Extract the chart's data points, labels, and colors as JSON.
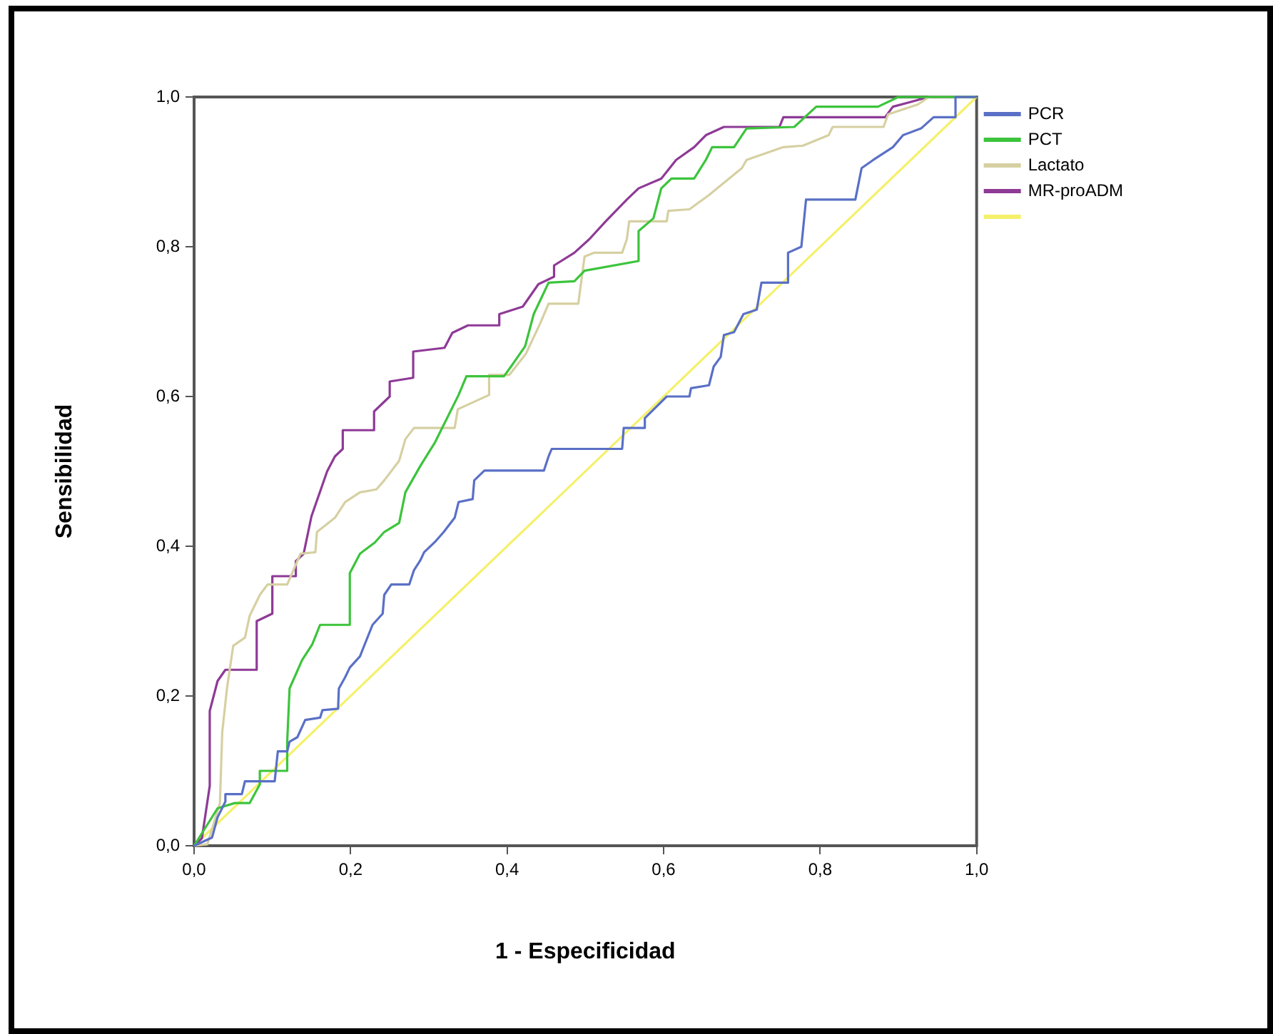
{
  "chart_data": {
    "type": "line",
    "xlabel": "1 - Especificidad",
    "ylabel": "Sensibilidad",
    "xlim": [
      0,
      1
    ],
    "ylim": [
      0,
      1
    ],
    "xticks": [
      {
        "value": 0,
        "label": "0,0"
      },
      {
        "value": 0.2,
        "label": "0,2"
      },
      {
        "value": 0.4,
        "label": "0,4"
      },
      {
        "value": 0.6,
        "label": "0,6"
      },
      {
        "value": 0.8,
        "label": "0,8"
      },
      {
        "value": 1,
        "label": "1,0"
      }
    ],
    "yticks": [
      {
        "value": 0,
        "label": "0,0"
      },
      {
        "value": 0.2,
        "label": "0,2"
      },
      {
        "value": 0.4,
        "label": "0,4"
      },
      {
        "value": 0.6,
        "label": "0,6"
      },
      {
        "value": 0.8,
        "label": "0,8"
      },
      {
        "value": 1,
        "label": "1,0"
      }
    ],
    "grid": false,
    "legend": "top right",
    "marker": "none",
    "line_style": "solid",
    "series": [
      {
        "name": "PCR",
        "color": "#5a70c6",
        "x": [
          0,
          0.023,
          0.03,
          0.04,
          0.04,
          0.061,
          0.065,
          0.103,
          0.107,
          0.119,
          0.122,
          0.132,
          0.142,
          0.161,
          0.164,
          0.184,
          0.185,
          0.193,
          0.199,
          0.212,
          0.228,
          0.241,
          0.243,
          0.252,
          0.275,
          0.281,
          0.289,
          0.294,
          0.308,
          0.319,
          0.333,
          0.338,
          0.356,
          0.358,
          0.371,
          0.447,
          0.453,
          0.457,
          0.547,
          0.549,
          0.576,
          0.576,
          0.604,
          0.633,
          0.635,
          0.658,
          0.664,
          0.673,
          0.677,
          0.69,
          0.702,
          0.719,
          0.725,
          0.759,
          0.759,
          0.776,
          0.782,
          0.845,
          0.853,
          0.868,
          0.893,
          0.906,
          0.929,
          0.945,
          0.973,
          0.973,
          1
        ],
        "values": [
          0,
          0.011,
          0.038,
          0.059,
          0.069,
          0.069,
          0.086,
          0.086,
          0.126,
          0.126,
          0.139,
          0.145,
          0.168,
          0.171,
          0.181,
          0.183,
          0.21,
          0.225,
          0.238,
          0.253,
          0.295,
          0.31,
          0.335,
          0.349,
          0.349,
          0.368,
          0.381,
          0.392,
          0.406,
          0.419,
          0.438,
          0.459,
          0.463,
          0.488,
          0.501,
          0.501,
          0.52,
          0.53,
          0.53,
          0.558,
          0.558,
          0.571,
          0.6,
          0.6,
          0.611,
          0.615,
          0.64,
          0.653,
          0.682,
          0.686,
          0.71,
          0.716,
          0.752,
          0.752,
          0.792,
          0.8,
          0.863,
          0.863,
          0.905,
          0.916,
          0.933,
          0.949,
          0.958,
          0.973,
          0.973,
          1,
          1
        ]
      },
      {
        "name": "PCT",
        "color": "#3cc43c",
        "x": [
          0,
          0.03,
          0.052,
          0.071,
          0.084,
          0.084,
          0.119,
          0.119,
          0.122,
          0.138,
          0.151,
          0.161,
          0.199,
          0.199,
          0.212,
          0.231,
          0.243,
          0.262,
          0.27,
          0.289,
          0.308,
          0.338,
          0.348,
          0.396,
          0.405,
          0.423,
          0.434,
          0.453,
          0.486,
          0.499,
          0.568,
          0.568,
          0.587,
          0.597,
          0.61,
          0.639,
          0.654,
          0.662,
          0.69,
          0.706,
          0.767,
          0.795,
          0.874,
          0.9,
          1
        ],
        "values": [
          0,
          0.05,
          0.057,
          0.057,
          0.082,
          0.1,
          0.1,
          0.139,
          0.21,
          0.248,
          0.269,
          0.295,
          0.295,
          0.364,
          0.39,
          0.405,
          0.419,
          0.431,
          0.472,
          0.507,
          0.539,
          0.602,
          0.627,
          0.627,
          0.64,
          0.667,
          0.71,
          0.752,
          0.754,
          0.768,
          0.781,
          0.821,
          0.838,
          0.878,
          0.891,
          0.891,
          0.916,
          0.933,
          0.933,
          0.958,
          0.96,
          0.987,
          0.987,
          1,
          1
        ]
      },
      {
        "name": "Lactato",
        "color": "#d6d0a2",
        "x": [
          0,
          0.017,
          0.033,
          0.036,
          0.042,
          0.05,
          0.065,
          0.071,
          0.084,
          0.094,
          0.119,
          0.136,
          0.155,
          0.157,
          0.18,
          0.193,
          0.212,
          0.233,
          0.243,
          0.262,
          0.27,
          0.281,
          0.333,
          0.337,
          0.377,
          0.377,
          0.403,
          0.424,
          0.442,
          0.453,
          0.491,
          0.499,
          0.511,
          0.547,
          0.553,
          0.556,
          0.604,
          0.606,
          0.633,
          0.658,
          0.7,
          0.706,
          0.753,
          0.778,
          0.811,
          0.816,
          0.881,
          0.887,
          0.925,
          0.939,
          1
        ],
        "values": [
          0,
          0.002,
          0.057,
          0.152,
          0.21,
          0.267,
          0.278,
          0.307,
          0.335,
          0.349,
          0.349,
          0.39,
          0.392,
          0.419,
          0.438,
          0.459,
          0.472,
          0.476,
          0.488,
          0.514,
          0.543,
          0.558,
          0.558,
          0.583,
          0.602,
          0.629,
          0.629,
          0.657,
          0.697,
          0.724,
          0.724,
          0.787,
          0.792,
          0.792,
          0.81,
          0.834,
          0.834,
          0.848,
          0.85,
          0.869,
          0.905,
          0.916,
          0.933,
          0.935,
          0.949,
          0.96,
          0.96,
          0.977,
          0.99,
          1,
          1
        ]
      },
      {
        "name": "MR-proADM",
        "color": "#8e3a96",
        "x": [
          0,
          0.01,
          0.02,
          0.02,
          0.03,
          0.04,
          0.08,
          0.08,
          0.1,
          0.1,
          0.13,
          0.13,
          0.14,
          0.15,
          0.16,
          0.17,
          0.18,
          0.19,
          0.19,
          0.23,
          0.23,
          0.25,
          0.25,
          0.28,
          0.28,
          0.32,
          0.33,
          0.35,
          0.39,
          0.39,
          0.42,
          0.44,
          0.46,
          0.46,
          0.486,
          0.505,
          0.526,
          0.553,
          0.568,
          0.597,
          0.616,
          0.639,
          0.654,
          0.677,
          0.748,
          0.753,
          0.883,
          0.893,
          0.939,
          1
        ],
        "values": [
          0,
          0.01,
          0.08,
          0.18,
          0.22,
          0.235,
          0.235,
          0.3,
          0.31,
          0.36,
          0.36,
          0.38,
          0.39,
          0.44,
          0.47,
          0.5,
          0.52,
          0.53,
          0.555,
          0.555,
          0.58,
          0.6,
          0.62,
          0.625,
          0.66,
          0.665,
          0.685,
          0.695,
          0.695,
          0.71,
          0.72,
          0.75,
          0.76,
          0.775,
          0.792,
          0.81,
          0.834,
          0.863,
          0.878,
          0.891,
          0.916,
          0.933,
          0.949,
          0.96,
          0.96,
          0.973,
          0.973,
          0.987,
          1,
          1
        ]
      },
      {
        "color": "#f5f06a",
        "x": [
          0,
          1
        ],
        "values": [
          0,
          1
        ]
      }
    ]
  }
}
